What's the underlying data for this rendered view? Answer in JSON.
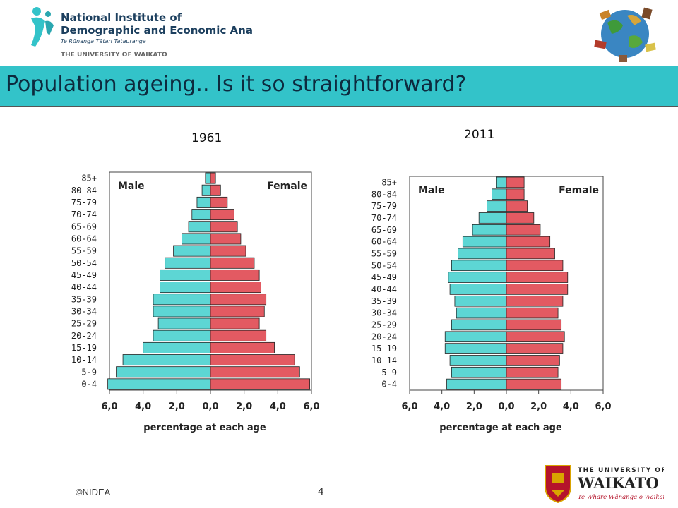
{
  "header": {
    "org_line1": "National Institute of",
    "org_line2": "Demographic and Economic Analysis",
    "org_maori": "Te Rūnanga Tātari Tatauranga",
    "org_university": "THE UNIVERSITY OF WAIKATO"
  },
  "slide": {
    "title": "Population ageing.. Is it so straightforward?"
  },
  "footer": {
    "copyright": "©NIDEA",
    "page_number": "4",
    "university_line1": "THE UNIVERSITY OF",
    "university_line2": "WAIKATO",
    "university_motto": "Te Whare Wānanga o Waikato"
  },
  "colors": {
    "title_bar": "#33c3c9",
    "male": "#5dd6d4",
    "female": "#e35a62",
    "nidea_blue": "#1c3f5e",
    "waikato_red": "#b5142b"
  },
  "chart_data": [
    {
      "type": "bar",
      "title": "1961",
      "left_label": "Male",
      "right_label": "Female",
      "xlabel": "percentage at each age",
      "xlim": [
        -6,
        6
      ],
      "xticks": [
        "6,0",
        "4,0",
        "2,0",
        "0,0",
        "2,0",
        "4,0",
        "6,0"
      ],
      "categories": [
        "0-4",
        "5-9",
        "10-14",
        "15-19",
        "20-24",
        "25-29",
        "30-34",
        "35-39",
        "40-44",
        "45-49",
        "50-54",
        "55-59",
        "60-64",
        "65-69",
        "70-74",
        "75-79",
        "80-84",
        "85+"
      ],
      "series": [
        {
          "name": "Male",
          "values": [
            6.1,
            5.6,
            5.2,
            4.0,
            3.4,
            3.1,
            3.4,
            3.4,
            3.0,
            3.0,
            2.7,
            2.2,
            1.7,
            1.3,
            1.1,
            0.8,
            0.5,
            0.3
          ]
        },
        {
          "name": "Female",
          "values": [
            5.9,
            5.3,
            5.0,
            3.8,
            3.3,
            2.9,
            3.2,
            3.3,
            3.0,
            2.9,
            2.6,
            2.1,
            1.8,
            1.6,
            1.4,
            1.0,
            0.6,
            0.3
          ]
        }
      ]
    },
    {
      "type": "bar",
      "title": "2011",
      "left_label": "Male",
      "right_label": "Female",
      "xlabel": "percentage at each age",
      "xlim": [
        -6,
        6
      ],
      "xticks": [
        "6,0",
        "4,0",
        "2,0",
        "0,0",
        "2,0",
        "4,0",
        "6,0"
      ],
      "categories": [
        "0-4",
        "5-9",
        "10-14",
        "15-19",
        "20-24",
        "25-29",
        "30-34",
        "35-39",
        "40-44",
        "45-49",
        "50-54",
        "55-59",
        "60-64",
        "65-69",
        "70-74",
        "75-79",
        "80-84",
        "85+"
      ],
      "series": [
        {
          "name": "Male",
          "values": [
            3.7,
            3.4,
            3.5,
            3.8,
            3.8,
            3.4,
            3.1,
            3.2,
            3.5,
            3.6,
            3.4,
            3.0,
            2.7,
            2.1,
            1.7,
            1.2,
            0.9,
            0.6
          ]
        },
        {
          "name": "Female",
          "values": [
            3.4,
            3.2,
            3.3,
            3.5,
            3.6,
            3.4,
            3.2,
            3.5,
            3.8,
            3.8,
            3.5,
            3.0,
            2.7,
            2.1,
            1.7,
            1.3,
            1.1,
            1.1
          ]
        }
      ]
    }
  ]
}
